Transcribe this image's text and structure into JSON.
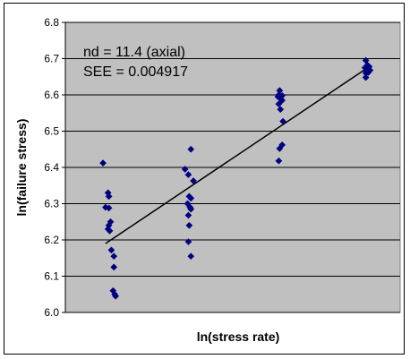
{
  "chart_data": {
    "type": "scatter",
    "title": "",
    "xlabel": "ln(stress rate)",
    "ylabel": "ln(failure stress)",
    "ylim": [
      6.0,
      6.8
    ],
    "yticks": [
      "6.0",
      "6.1",
      "6.2",
      "6.3",
      "6.4",
      "6.5",
      "6.6",
      "6.7",
      "6.8"
    ],
    "xlim": [
      0,
      4
    ],
    "grid": true,
    "legend": "none",
    "annotations": [
      "nd = 11.4 (axial)",
      "SEE = 0.004917"
    ],
    "colors": {
      "plot_area": "#c0c0c0",
      "marker": "#000080",
      "line": "#000000",
      "gridline": "#000000"
    },
    "marker": "diamond",
    "series": [
      {
        "points": [
          [
            0.45,
            6.412
          ],
          [
            0.51,
            6.33
          ],
          [
            0.52,
            6.32
          ],
          [
            0.48,
            6.29
          ],
          [
            0.52,
            6.288
          ],
          [
            0.54,
            6.25
          ],
          [
            0.52,
            6.24
          ],
          [
            0.51,
            6.23
          ],
          [
            0.53,
            6.225
          ],
          [
            0.55,
            6.172
          ],
          [
            0.58,
            6.155
          ],
          [
            0.58,
            6.125
          ],
          [
            0.57,
            6.06
          ],
          [
            0.59,
            6.05
          ],
          [
            0.6,
            6.045
          ]
        ]
      },
      {
        "points": [
          [
            1.43,
            6.395
          ],
          [
            1.5,
            6.45
          ],
          [
            1.47,
            6.38
          ],
          [
            1.53,
            6.363
          ],
          [
            1.48,
            6.32
          ],
          [
            1.5,
            6.315
          ],
          [
            1.46,
            6.3
          ],
          [
            1.49,
            6.29
          ],
          [
            1.5,
            6.285
          ],
          [
            1.47,
            6.268
          ],
          [
            1.48,
            6.24
          ],
          [
            1.47,
            6.195
          ],
          [
            1.5,
            6.155
          ]
        ]
      },
      {
        "points": [
          [
            2.56,
            6.612
          ],
          [
            2.55,
            6.6
          ],
          [
            2.59,
            6.598
          ],
          [
            2.54,
            6.595
          ],
          [
            2.57,
            6.59
          ],
          [
            2.59,
            6.585
          ],
          [
            2.55,
            6.575
          ],
          [
            2.57,
            6.56
          ],
          [
            2.6,
            6.527
          ],
          [
            2.59,
            6.462
          ],
          [
            2.56,
            6.452
          ],
          [
            2.55,
            6.418
          ]
        ]
      },
      {
        "points": [
          [
            3.59,
            6.695
          ],
          [
            3.61,
            6.682
          ],
          [
            3.63,
            6.678
          ],
          [
            3.58,
            6.675
          ],
          [
            3.61,
            6.67
          ],
          [
            3.64,
            6.668
          ],
          [
            3.6,
            6.665
          ],
          [
            3.62,
            6.662
          ],
          [
            3.59,
            6.66
          ],
          [
            3.59,
            6.648
          ]
        ]
      }
    ],
    "trendline": {
      "x": [
        0.48,
        3.58
      ],
      "y": [
        6.19,
        6.67
      ]
    }
  }
}
